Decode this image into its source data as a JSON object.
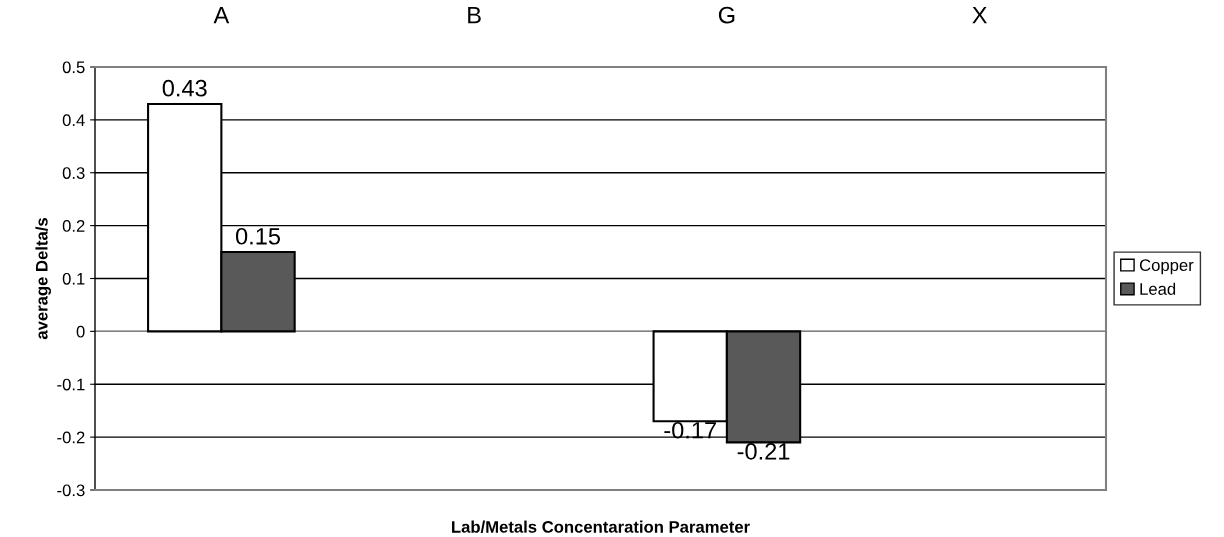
{
  "chart_data": {
    "type": "bar",
    "xlabel": "Lab/Metals Concentaration Parameter",
    "ylabel": "average Delta/s",
    "categories": [
      "A",
      "B",
      "G",
      "X"
    ],
    "series": [
      {
        "name": "Copper",
        "color": "#ffffff",
        "values": [
          0.43,
          null,
          -0.17,
          null
        ]
      },
      {
        "name": "Lead",
        "color": "#595959",
        "values": [
          0.15,
          null,
          -0.21,
          null
        ]
      }
    ],
    "ylim": [
      -0.3,
      0.5
    ],
    "yticks": [
      -0.3,
      -0.2,
      -0.1,
      0,
      0.1,
      0.2,
      0.3,
      0.4,
      0.5
    ],
    "grid": "y",
    "legend": "right",
    "data_labels": true
  }
}
